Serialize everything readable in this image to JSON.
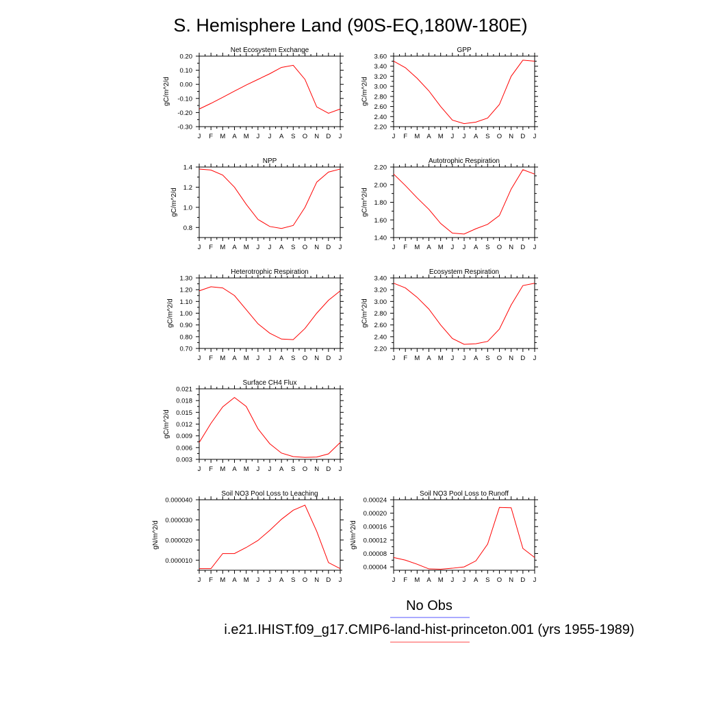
{
  "figure": {
    "title": "S. Hemisphere Land (90S-EQ,180W-180E)",
    "legend": [
      {
        "label": "No Obs",
        "color": "#5555ff"
      },
      {
        "label": "i.e21.IHIST.f09_g17.CMIP6-land-hist-princeton.001 (yrs 1955-1989)",
        "color": "#ff4444"
      }
    ],
    "line_color": "#ff0000"
  },
  "chart_data": [
    {
      "type": "line",
      "title": "Net Ecosystem Exchange",
      "ylabel": "gC/m^2/d",
      "categories": [
        "J",
        "F",
        "M",
        "A",
        "M",
        "J",
        "J",
        "A",
        "S",
        "O",
        "N",
        "D",
        "J"
      ],
      "ylim": [
        -0.3,
        0.2
      ],
      "yticks": [
        -0.3,
        -0.2,
        -0.1,
        0.0,
        0.1,
        0.2
      ],
      "ytick_labels": [
        "-0.30",
        "-0.20",
        "-0.10",
        "0.00",
        "0.10",
        "0.20"
      ],
      "series": [
        {
          "values": [
            -0.175,
            -0.135,
            -0.092,
            -0.048,
            -0.005,
            0.035,
            0.075,
            0.12,
            0.135,
            0.035,
            -0.16,
            -0.205,
            -0.175
          ]
        }
      ]
    },
    {
      "type": "line",
      "title": "GPP",
      "ylabel": "gC/m^2/d",
      "categories": [
        "J",
        "F",
        "M",
        "A",
        "M",
        "J",
        "J",
        "A",
        "S",
        "O",
        "N",
        "D",
        "J"
      ],
      "ylim": [
        2.2,
        3.6
      ],
      "yticks": [
        2.2,
        2.4,
        2.6,
        2.8,
        3.0,
        3.2,
        3.4,
        3.6
      ],
      "ytick_labels": [
        "2.20",
        "2.40",
        "2.60",
        "2.80",
        "3.00",
        "3.20",
        "3.40",
        "3.60"
      ],
      "series": [
        {
          "values": [
            3.5,
            3.37,
            3.16,
            2.91,
            2.6,
            2.33,
            2.26,
            2.29,
            2.37,
            2.64,
            3.2,
            3.52,
            3.5
          ]
        }
      ]
    },
    {
      "type": "line",
      "title": "NPP",
      "ylabel": "gC/m^2/d",
      "categories": [
        "J",
        "F",
        "M",
        "A",
        "M",
        "J",
        "J",
        "A",
        "S",
        "O",
        "N",
        "D",
        "J"
      ],
      "ylim": [
        0.7,
        1.4
      ],
      "yticks": [
        0.8,
        1.0,
        1.2,
        1.4
      ],
      "ytick_labels": [
        "0.8",
        "1.0",
        "1.2",
        "1.4"
      ],
      "series": [
        {
          "values": [
            1.38,
            1.37,
            1.32,
            1.2,
            1.03,
            0.88,
            0.81,
            0.79,
            0.82,
            1.0,
            1.25,
            1.35,
            1.38
          ]
        }
      ]
    },
    {
      "type": "line",
      "title": "Autotrophic Respiration",
      "ylabel": "gC/m^2/d",
      "categories": [
        "J",
        "F",
        "M",
        "A",
        "M",
        "J",
        "J",
        "A",
        "S",
        "O",
        "N",
        "D",
        "J"
      ],
      "ylim": [
        1.4,
        2.2
      ],
      "yticks": [
        1.4,
        1.6,
        1.8,
        2.0,
        2.2
      ],
      "ytick_labels": [
        "1.40",
        "1.60",
        "1.80",
        "2.00",
        "2.20"
      ],
      "series": [
        {
          "values": [
            2.12,
            1.99,
            1.85,
            1.72,
            1.56,
            1.45,
            1.44,
            1.5,
            1.55,
            1.65,
            1.95,
            2.17,
            2.12
          ]
        }
      ]
    },
    {
      "type": "line",
      "title": "Heterotrophic Respiration",
      "ylabel": "gC/m^2/d",
      "categories": [
        "J",
        "F",
        "M",
        "A",
        "M",
        "J",
        "J",
        "A",
        "S",
        "O",
        "N",
        "D",
        "J"
      ],
      "ylim": [
        0.7,
        1.3
      ],
      "yticks": [
        0.7,
        0.8,
        0.9,
        1.0,
        1.1,
        1.2,
        1.3
      ],
      "ytick_labels": [
        "0.70",
        "0.80",
        "0.90",
        "1.00",
        "1.10",
        "1.20",
        "1.30"
      ],
      "series": [
        {
          "values": [
            1.19,
            1.225,
            1.215,
            1.15,
            1.03,
            0.91,
            0.83,
            0.78,
            0.775,
            0.87,
            1.0,
            1.11,
            1.19
          ]
        }
      ]
    },
    {
      "type": "line",
      "title": "Ecosystem Respiration",
      "ylabel": "gC/m^2/d",
      "categories": [
        "J",
        "F",
        "M",
        "A",
        "M",
        "J",
        "J",
        "A",
        "S",
        "O",
        "N",
        "D",
        "J"
      ],
      "ylim": [
        2.2,
        3.4
      ],
      "yticks": [
        2.2,
        2.4,
        2.6,
        2.8,
        3.0,
        3.2,
        3.4
      ],
      "ytick_labels": [
        "2.20",
        "2.40",
        "2.60",
        "2.80",
        "3.00",
        "3.20",
        "3.40"
      ],
      "series": [
        {
          "values": [
            3.31,
            3.23,
            3.07,
            2.87,
            2.6,
            2.37,
            2.27,
            2.28,
            2.32,
            2.53,
            2.94,
            3.27,
            3.31
          ]
        }
      ]
    },
    {
      "type": "line",
      "title": "Surface CH4 Flux",
      "ylabel": "gC/m^2/d",
      "categories": [
        "J",
        "F",
        "M",
        "A",
        "M",
        "J",
        "J",
        "A",
        "S",
        "O",
        "N",
        "D",
        "J"
      ],
      "ylim": [
        0.003,
        0.021
      ],
      "yticks": [
        0.003,
        0.006,
        0.009,
        0.012,
        0.015,
        0.018,
        0.021
      ],
      "ytick_labels": [
        "0.003",
        "0.006",
        "0.009",
        "0.012",
        "0.015",
        "0.018",
        "0.021"
      ],
      "series": [
        {
          "values": [
            0.0073,
            0.0122,
            0.0164,
            0.0188,
            0.0165,
            0.0108,
            0.007,
            0.0046,
            0.0037,
            0.0035,
            0.0036,
            0.0044,
            0.0073
          ]
        }
      ]
    },
    {
      "type": "line",
      "title": "Soil NO3 Pool Loss to Leaching",
      "ylabel": "gN/m^2/d",
      "categories": [
        "J",
        "F",
        "M",
        "A",
        "M",
        "J",
        "J",
        "A",
        "S",
        "O",
        "N",
        "D",
        "J"
      ],
      "ylim": [
        5e-06,
        4e-05
      ],
      "yticks": [
        1e-05,
        2e-05,
        3e-05,
        4e-05
      ],
      "ytick_labels": [
        "0.000010",
        "0.000020",
        "0.000030",
        "0.000040"
      ],
      "series": [
        {
          "values": [
            5.8e-06,
            5.8e-06,
            1.33e-05,
            1.33e-05,
            1.63e-05,
            1.98e-05,
            2.48e-05,
            3.03e-05,
            3.48e-05,
            3.73e-05,
            2.43e-05,
            8.8e-06,
            5.8e-06
          ]
        }
      ]
    },
    {
      "type": "line",
      "title": "Soil NO3 Pool Loss to Runoff",
      "ylabel": "gN/m^2/d",
      "categories": [
        "J",
        "F",
        "M",
        "A",
        "M",
        "J",
        "J",
        "A",
        "S",
        "O",
        "N",
        "D",
        "J"
      ],
      "ylim": [
        3e-05,
        0.00024
      ],
      "yticks": [
        4e-05,
        8e-05,
        0.00012,
        0.00016,
        0.0002,
        0.00024
      ],
      "ytick_labels": [
        "0.00004",
        "0.00008",
        "0.00012",
        "0.00016",
        "0.00020",
        "0.00024"
      ],
      "series": [
        {
          "values": [
            6.8e-05,
            6e-05,
            4.8e-05,
            3.4e-05,
            3.3e-05,
            3.6e-05,
            4e-05,
            5.8e-05,
            0.000108,
            0.000217,
            0.000216,
            9.5e-05,
            6.8e-05
          ]
        }
      ]
    }
  ]
}
